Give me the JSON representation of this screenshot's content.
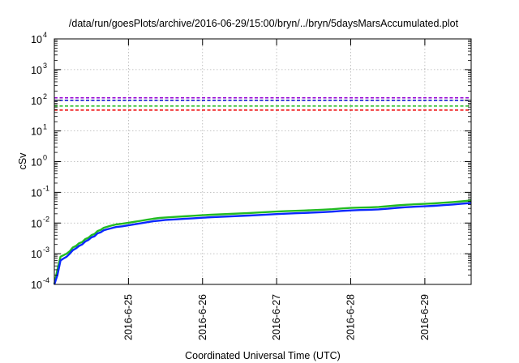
{
  "chart_data": {
    "type": "line",
    "title": "/data/run/goesPlots/archive/2016-06-29/15:00/bryn/../bryn/5daysMarsAccumulated.plot",
    "xlabel": "Coordinated Universal Time (UTC)",
    "ylabel": "cSv",
    "x_scale": "time",
    "y_scale": "log",
    "xlim": [
      "2016-06-24T00:00",
      "2016-06-29T15:00"
    ],
    "ylim": [
      0.0001,
      10000
    ],
    "grid": true,
    "legend": "none",
    "x_ticks": [
      {
        "x": "2016-06-25T00:00",
        "label": "2016-6-25"
      },
      {
        "x": "2016-06-26T00:00",
        "label": "2016-6-26"
      },
      {
        "x": "2016-06-27T00:00",
        "label": "2016-6-27"
      },
      {
        "x": "2016-06-28T00:00",
        "label": "2016-6-28"
      },
      {
        "x": "2016-06-29T00:00",
        "label": "2016-6-29"
      }
    ],
    "y_ticks": [
      {
        "y": 0.0001,
        "base": "10",
        "exp": "-4"
      },
      {
        "y": 0.001,
        "base": "10",
        "exp": "-3"
      },
      {
        "y": 0.01,
        "base": "10",
        "exp": "-2"
      },
      {
        "y": 0.1,
        "base": "10",
        "exp": "-1"
      },
      {
        "y": 1,
        "base": "10",
        "exp": "0"
      },
      {
        "y": 10,
        "base": "10",
        "exp": "1"
      },
      {
        "y": 100,
        "base": "10",
        "exp": "2"
      },
      {
        "y": 1000,
        "base": "10",
        "exp": "3"
      },
      {
        "y": 10000,
        "base": "10",
        "exp": "4"
      }
    ],
    "reference_lines": [
      {
        "y": 120,
        "color": "#9400d3",
        "style": "dashed"
      },
      {
        "y": 100,
        "color": "#0000cc",
        "style": "dashed"
      },
      {
        "y": 65,
        "color": "#22bb22",
        "style": "dashed"
      },
      {
        "y": 48,
        "color": "#ee0000",
        "style": "dashed"
      }
    ],
    "series": [
      {
        "color": "#22bb22",
        "points": [
          [
            "2016-06-24T00:00",
            0.0001
          ],
          [
            "2016-06-24T01:00",
            0.0003
          ],
          [
            "2016-06-24T02:00",
            0.0008
          ],
          [
            "2016-06-24T03:00",
            0.0009
          ],
          [
            "2016-06-24T04:00",
            0.001
          ],
          [
            "2016-06-24T05:00",
            0.0012
          ],
          [
            "2016-06-24T06:00",
            0.0016
          ],
          [
            "2016-06-24T07:00",
            0.0018
          ],
          [
            "2016-06-24T08:00",
            0.0022
          ],
          [
            "2016-06-24T09:00",
            0.0024
          ],
          [
            "2016-06-24T10:00",
            0.003
          ],
          [
            "2016-06-24T11:00",
            0.0033
          ],
          [
            "2016-06-24T12:00",
            0.004
          ],
          [
            "2016-06-24T13:00",
            0.0044
          ],
          [
            "2016-06-24T14:00",
            0.0055
          ],
          [
            "2016-06-24T15:00",
            0.006
          ],
          [
            "2016-06-24T16:00",
            0.007
          ],
          [
            "2016-06-24T17:00",
            0.0075
          ],
          [
            "2016-06-24T18:00",
            0.008
          ],
          [
            "2016-06-24T19:00",
            0.0085
          ],
          [
            "2016-06-24T20:00",
            0.009
          ],
          [
            "2016-06-24T22:00",
            0.0095
          ],
          [
            "2016-06-25T00:00",
            0.0102
          ],
          [
            "2016-06-25T02:00",
            0.011
          ],
          [
            "2016-06-25T04:00",
            0.0118
          ],
          [
            "2016-06-25T06:00",
            0.0128
          ],
          [
            "2016-06-25T08:00",
            0.0138
          ],
          [
            "2016-06-25T10:00",
            0.0146
          ],
          [
            "2016-06-25T12:00",
            0.0152
          ],
          [
            "2016-06-25T15:00",
            0.0158
          ],
          [
            "2016-06-25T18:00",
            0.0165
          ],
          [
            "2016-06-25T21:00",
            0.0172
          ],
          [
            "2016-06-26T00:00",
            0.018
          ],
          [
            "2016-06-26T03:00",
            0.0186
          ],
          [
            "2016-06-26T06:00",
            0.0192
          ],
          [
            "2016-06-26T09:00",
            0.0198
          ],
          [
            "2016-06-26T12:00",
            0.0205
          ],
          [
            "2016-06-26T15:00",
            0.0212
          ],
          [
            "2016-06-26T18:00",
            0.022
          ],
          [
            "2016-06-26T21:00",
            0.0228
          ],
          [
            "2016-06-27T00:00",
            0.0236
          ],
          [
            "2016-06-27T03:00",
            0.0243
          ],
          [
            "2016-06-27T06:00",
            0.025
          ],
          [
            "2016-06-27T09:00",
            0.0256
          ],
          [
            "2016-06-27T12:00",
            0.0264
          ],
          [
            "2016-06-27T15:00",
            0.0272
          ],
          [
            "2016-06-27T18:00",
            0.0282
          ],
          [
            "2016-06-27T21:00",
            0.0298
          ],
          [
            "2016-06-28T00:00",
            0.031
          ],
          [
            "2016-06-28T03:00",
            0.0318
          ],
          [
            "2016-06-28T06:00",
            0.0325
          ],
          [
            "2016-06-28T09:00",
            0.0335
          ],
          [
            "2016-06-28T12:00",
            0.0352
          ],
          [
            "2016-06-28T15:00",
            0.0375
          ],
          [
            "2016-06-28T18:00",
            0.0395
          ],
          [
            "2016-06-28T21:00",
            0.0408
          ],
          [
            "2016-06-29T00:00",
            0.042
          ],
          [
            "2016-06-29T03:00",
            0.0438
          ],
          [
            "2016-06-29T06:00",
            0.0458
          ],
          [
            "2016-06-29T09:00",
            0.0482
          ],
          [
            "2016-06-29T12:00",
            0.051
          ],
          [
            "2016-06-29T15:00",
            0.054
          ]
        ]
      },
      {
        "color": "#0a28ff",
        "points": [
          [
            "2016-06-24T00:00",
            0.0001
          ],
          [
            "2016-06-24T01:00",
            0.0002
          ],
          [
            "2016-06-24T02:00",
            0.0006
          ],
          [
            "2016-06-24T03:00",
            0.0007
          ],
          [
            "2016-06-24T04:00",
            0.0008
          ],
          [
            "2016-06-24T05:00",
            0.001
          ],
          [
            "2016-06-24T06:00",
            0.0013
          ],
          [
            "2016-06-24T07:00",
            0.0015
          ],
          [
            "2016-06-24T08:00",
            0.0018
          ],
          [
            "2016-06-24T09:00",
            0.002
          ],
          [
            "2016-06-24T10:00",
            0.0025
          ],
          [
            "2016-06-24T11:00",
            0.0028
          ],
          [
            "2016-06-24T12:00",
            0.0034
          ],
          [
            "2016-06-24T13:00",
            0.0037
          ],
          [
            "2016-06-24T14:00",
            0.0046
          ],
          [
            "2016-06-24T15:00",
            0.005
          ],
          [
            "2016-06-24T16:00",
            0.0058
          ],
          [
            "2016-06-24T17:00",
            0.0062
          ],
          [
            "2016-06-24T18:00",
            0.0066
          ],
          [
            "2016-06-24T19:00",
            0.007
          ],
          [
            "2016-06-24T20:00",
            0.0074
          ],
          [
            "2016-06-24T22:00",
            0.0078
          ],
          [
            "2016-06-25T00:00",
            0.0084
          ],
          [
            "2016-06-25T02:00",
            0.0091
          ],
          [
            "2016-06-25T04:00",
            0.0098
          ],
          [
            "2016-06-25T06:00",
            0.0106
          ],
          [
            "2016-06-25T08:00",
            0.0114
          ],
          [
            "2016-06-25T10:00",
            0.012
          ],
          [
            "2016-06-25T12:00",
            0.0126
          ],
          [
            "2016-06-25T15:00",
            0.0131
          ],
          [
            "2016-06-25T18:00",
            0.0137
          ],
          [
            "2016-06-25T21:00",
            0.0143
          ],
          [
            "2016-06-26T00:00",
            0.0149
          ],
          [
            "2016-06-26T03:00",
            0.0154
          ],
          [
            "2016-06-26T06:00",
            0.0159
          ],
          [
            "2016-06-26T09:00",
            0.0164
          ],
          [
            "2016-06-26T12:00",
            0.017
          ],
          [
            "2016-06-26T15:00",
            0.0176
          ],
          [
            "2016-06-26T18:00",
            0.0182
          ],
          [
            "2016-06-26T21:00",
            0.0189
          ],
          [
            "2016-06-27T00:00",
            0.0196
          ],
          [
            "2016-06-27T03:00",
            0.0202
          ],
          [
            "2016-06-27T06:00",
            0.0208
          ],
          [
            "2016-06-27T09:00",
            0.0213
          ],
          [
            "2016-06-27T12:00",
            0.022
          ],
          [
            "2016-06-27T15:00",
            0.0227
          ],
          [
            "2016-06-27T18:00",
            0.0235
          ],
          [
            "2016-06-27T21:00",
            0.0248
          ],
          [
            "2016-06-28T00:00",
            0.0258
          ],
          [
            "2016-06-28T03:00",
            0.0265
          ],
          [
            "2016-06-28T06:00",
            0.0271
          ],
          [
            "2016-06-28T09:00",
            0.0279
          ],
          [
            "2016-06-28T12:00",
            0.0293
          ],
          [
            "2016-06-28T15:00",
            0.0312
          ],
          [
            "2016-06-28T18:00",
            0.0329
          ],
          [
            "2016-06-28T21:00",
            0.034
          ],
          [
            "2016-06-29T00:00",
            0.035
          ],
          [
            "2016-06-29T03:00",
            0.0365
          ],
          [
            "2016-06-29T06:00",
            0.0382
          ],
          [
            "2016-06-29T09:00",
            0.0402
          ],
          [
            "2016-06-29T12:00",
            0.0425
          ],
          [
            "2016-06-29T15:00",
            0.045
          ]
        ]
      }
    ]
  }
}
